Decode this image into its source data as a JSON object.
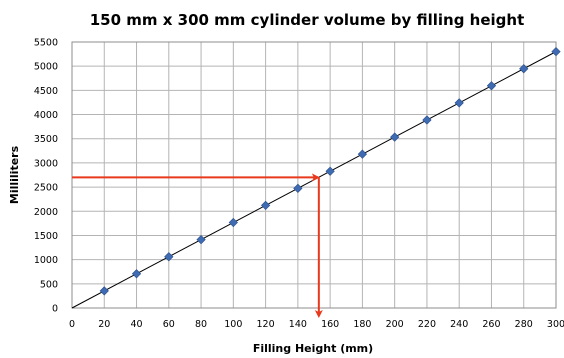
{
  "chart_data": {
    "type": "scatter",
    "title": "150 mm x 300 mm cylinder volume by filling height",
    "xlabel": "Filling Height (mm)",
    "ylabel": "Milliliters",
    "xlim": [
      0,
      300
    ],
    "ylim": [
      0,
      5500
    ],
    "xticks": [
      0,
      20,
      40,
      60,
      80,
      100,
      120,
      140,
      160,
      180,
      200,
      220,
      240,
      260,
      280,
      300
    ],
    "yticks": [
      0,
      500,
      1000,
      1500,
      2000,
      2500,
      3000,
      3500,
      4000,
      4500,
      5000,
      5500
    ],
    "grid": true,
    "points": {
      "x": [
        20,
        40,
        60,
        80,
        100,
        120,
        140,
        160,
        180,
        200,
        220,
        240,
        260,
        280,
        300
      ],
      "y": [
        353,
        707,
        1060,
        1414,
        1767,
        2121,
        2474,
        2827,
        3181,
        3534,
        3888,
        4241,
        4595,
        4948,
        5301
      ]
    },
    "trendline": {
      "x": [
        0,
        300
      ],
      "y": [
        0,
        5301
      ]
    },
    "annotation": {
      "type": "lookup-arrows",
      "y_value": 2700,
      "x_value": 153,
      "color": "#e8391d"
    },
    "marker_color": "#3f6bb3"
  }
}
